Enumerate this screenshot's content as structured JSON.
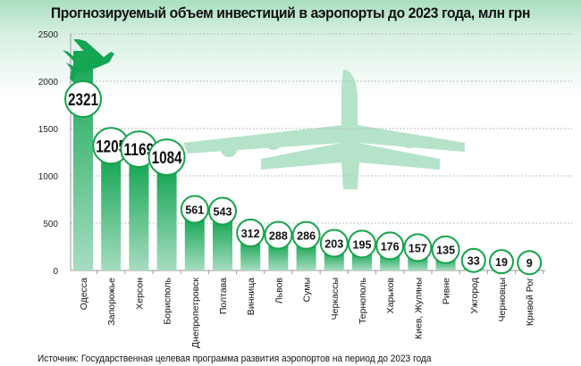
{
  "chart_data": {
    "type": "bar",
    "title": "Прогнозируемый объем инвестиций в аэропорты до 2023 года, млн грн",
    "categories": [
      "Одесса",
      "Запорожье",
      "Херсон",
      "Борисполь",
      "Днепропетровск",
      "Полтава",
      "Винница",
      "Львов",
      "Сумы",
      "Черкассы",
      "Тернополь",
      "Харьков",
      "Киев, Жуляны",
      "Ривне",
      "Ужгород",
      "Черновцы",
      "Кривой Рог"
    ],
    "values": [
      2321,
      1205,
      1169,
      1084,
      561,
      543,
      312,
      288,
      286,
      203,
      195,
      176,
      157,
      135,
      33,
      19,
      9
    ],
    "ylim": [
      0,
      2500
    ],
    "yticks": [
      0,
      500,
      1000,
      1500,
      2000,
      2500
    ],
    "grid": true,
    "xlabel": "",
    "ylabel": "",
    "colors": {
      "bar_top": "#13a552",
      "bar_bottom": "#a6dcc1",
      "circle_stroke": "#16a34a",
      "plane_dark": "#13a552",
      "plane_light": "#b4e3c9"
    }
  },
  "source": "Источник: Государственная целевая программа развития аэропортов на период до 2023 года"
}
